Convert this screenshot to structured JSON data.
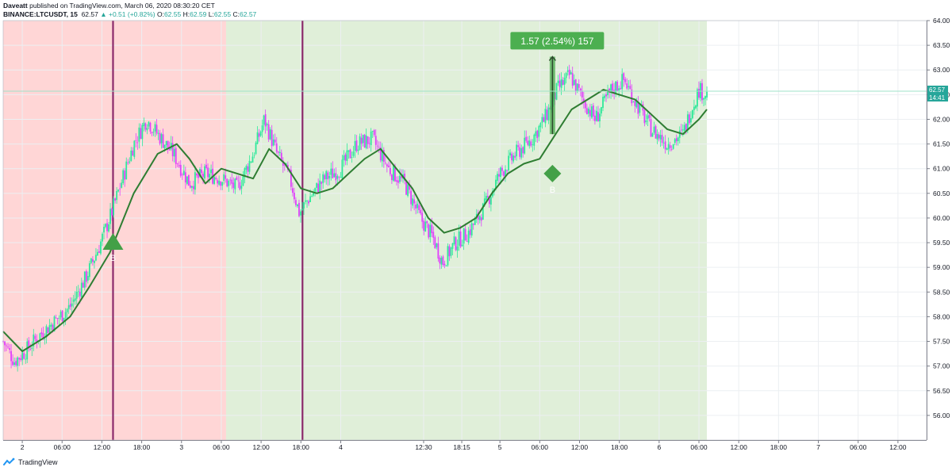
{
  "header": {
    "author": "Daveatt",
    "published_text": "published on TradingView.com, March 06, 2020 08:30:20 CET",
    "symbol": "BINANCE:LTCUSDT, 15",
    "last": "62.57",
    "change": "▲ +0.51 (+0.82%)",
    "o_label": "O:",
    "o_value": "62.55",
    "h_label": "H:",
    "h_value": "62.59",
    "l_label": "L:",
    "l_value": "62.55",
    "c_label": "C:",
    "c_value": "62.57"
  },
  "footer": {
    "brand": "TradingView"
  },
  "colors": {
    "bull_candle": "#2ee89a",
    "bear_candle": "#e040fb",
    "ma_line": "#2e7d32",
    "bg_red": "#ffd6d6",
    "bg_green": "#e0efd9",
    "marker_green": "#43a047",
    "vline": "#8b2a6b",
    "last_price": "#26a69a",
    "measure_box": "#4caf50"
  },
  "chart_data": {
    "type": "candlestick",
    "symbol": "BINANCE:LTCUSDT",
    "timeframe": "15",
    "y_axis": {
      "min": 55.5,
      "max": 64.0,
      "ticks": [
        "64.00",
        "63.50",
        "63.00",
        "62.50",
        "62.00",
        "61.50",
        "61.00",
        "60.50",
        "60.00",
        "59.50",
        "59.00",
        "58.50",
        "58.00",
        "57.50",
        "57.00",
        "56.50",
        "56.00"
      ]
    },
    "x_axis": {
      "ticks": [
        {
          "label": "2",
          "t": 0.0
        },
        {
          "label": "06:00",
          "t": 0.25
        },
        {
          "label": "12:00",
          "t": 0.5
        },
        {
          "label": "18:00",
          "t": 0.75
        },
        {
          "label": "3",
          "t": 1.0
        },
        {
          "label": "06:00",
          "t": 1.25
        },
        {
          "label": "12:00",
          "t": 1.5
        },
        {
          "label": "18:00",
          "t": 1.75
        },
        {
          "label": "4",
          "t": 2.0
        },
        {
          "label": "12:30",
          "t": 2.5208
        },
        {
          "label": "18:15",
          "t": 2.7604
        },
        {
          "label": "5",
          "t": 3.0
        },
        {
          "label": "06:00",
          "t": 3.25
        },
        {
          "label": "12:00",
          "t": 3.5
        },
        {
          "label": "18:00",
          "t": 3.75
        },
        {
          "label": "6",
          "t": 4.0
        },
        {
          "label": "06:00",
          "t": 4.25
        },
        {
          "label": "12:00",
          "t": 4.5
        },
        {
          "label": "18:00",
          "t": 4.75
        },
        {
          "label": "7",
          "t": 5.0
        },
        {
          "label": "06:00",
          "t": 5.25
        },
        {
          "label": "12:00",
          "t": 5.5
        }
      ]
    },
    "price_path": [
      [
        -0.12,
        57.5
      ],
      [
        -0.05,
        57.1
      ],
      [
        0.02,
        57.3
      ],
      [
        0.1,
        57.6
      ],
      [
        0.2,
        57.9
      ],
      [
        0.3,
        58.2
      ],
      [
        0.4,
        58.8
      ],
      [
        0.48,
        59.4
      ],
      [
        0.56,
        60.1
      ],
      [
        0.62,
        60.7
      ],
      [
        0.7,
        61.5
      ],
      [
        0.78,
        62.0
      ],
      [
        0.85,
        61.7
      ],
      [
        0.95,
        61.3
      ],
      [
        1.05,
        60.7
      ],
      [
        1.15,
        60.9
      ],
      [
        1.25,
        60.8
      ],
      [
        1.35,
        60.6
      ],
      [
        1.45,
        61.3
      ],
      [
        1.52,
        62.0
      ],
      [
        1.6,
        61.3
      ],
      [
        1.68,
        60.8
      ],
      [
        1.74,
        60.1
      ],
      [
        1.8,
        60.4
      ],
      [
        1.9,
        60.8
      ],
      [
        2.0,
        61.0
      ],
      [
        2.1,
        61.5
      ],
      [
        2.2,
        61.6
      ],
      [
        2.3,
        61.0
      ],
      [
        2.4,
        60.7
      ],
      [
        2.5,
        60.0
      ],
      [
        2.58,
        59.6
      ],
      [
        2.64,
        59.1
      ],
      [
        2.72,
        59.5
      ],
      [
        2.8,
        59.7
      ],
      [
        2.9,
        60.2
      ],
      [
        3.0,
        60.9
      ],
      [
        3.1,
        61.3
      ],
      [
        3.2,
        61.6
      ],
      [
        3.28,
        62.0
      ],
      [
        3.36,
        62.6
      ],
      [
        3.44,
        62.9
      ],
      [
        3.52,
        62.4
      ],
      [
        3.6,
        62.0
      ],
      [
        3.7,
        62.6
      ],
      [
        3.78,
        62.8
      ],
      [
        3.86,
        62.3
      ],
      [
        3.95,
        61.8
      ],
      [
        4.05,
        61.5
      ],
      [
        4.15,
        61.7
      ],
      [
        4.2,
        62.2
      ],
      [
        4.25,
        62.6
      ],
      [
        4.3,
        62.5
      ]
    ],
    "range_high": 63.2,
    "range_low": 55.6,
    "moving_average": [
      [
        -0.12,
        57.7
      ],
      [
        0.0,
        57.3
      ],
      [
        0.15,
        57.6
      ],
      [
        0.3,
        58.0
      ],
      [
        0.42,
        58.6
      ],
      [
        0.55,
        59.3
      ],
      [
        0.7,
        60.5
      ],
      [
        0.85,
        61.3
      ],
      [
        0.97,
        61.5
      ],
      [
        1.05,
        61.2
      ],
      [
        1.15,
        60.7
      ],
      [
        1.25,
        61.0
      ],
      [
        1.35,
        60.9
      ],
      [
        1.45,
        60.8
      ],
      [
        1.55,
        61.4
      ],
      [
        1.65,
        61.1
      ],
      [
        1.75,
        60.6
      ],
      [
        1.85,
        60.5
      ],
      [
        1.95,
        60.6
      ],
      [
        2.05,
        60.9
      ],
      [
        2.15,
        61.2
      ],
      [
        2.25,
        61.4
      ],
      [
        2.35,
        61.0
      ],
      [
        2.45,
        60.6
      ],
      [
        2.55,
        60.0
      ],
      [
        2.65,
        59.7
      ],
      [
        2.75,
        59.8
      ],
      [
        2.85,
        60.0
      ],
      [
        2.95,
        60.5
      ],
      [
        3.05,
        60.9
      ],
      [
        3.15,
        61.1
      ],
      [
        3.25,
        61.2
      ],
      [
        3.35,
        61.7
      ],
      [
        3.45,
        62.2
      ],
      [
        3.55,
        62.4
      ],
      [
        3.65,
        62.6
      ],
      [
        3.75,
        62.5
      ],
      [
        3.85,
        62.4
      ],
      [
        3.95,
        62.1
      ],
      [
        4.05,
        61.8
      ],
      [
        4.15,
        61.7
      ],
      [
        4.25,
        62.0
      ],
      [
        4.3,
        62.2
      ]
    ],
    "backgrounds": [
      {
        "from": -0.12,
        "to": 1.28,
        "zone": "bearish"
      },
      {
        "from": 1.28,
        "to": 4.3,
        "zone": "bullish"
      }
    ],
    "vertical_lines": [
      0.57,
      1.76
    ],
    "markers": [
      {
        "shape": "triangle-up",
        "t": 0.57,
        "price": 59.5,
        "label": "B"
      },
      {
        "shape": "diamond",
        "t": 3.33,
        "price": 60.9,
        "label": "B"
      }
    ],
    "measure": {
      "t": 3.33,
      "from_price": 61.7,
      "to_price": 63.27,
      "label": "1.57 (2.54%) 157"
    },
    "last_price": {
      "value": "62.57",
      "countdown": "14:41",
      "price": 62.57
    }
  }
}
